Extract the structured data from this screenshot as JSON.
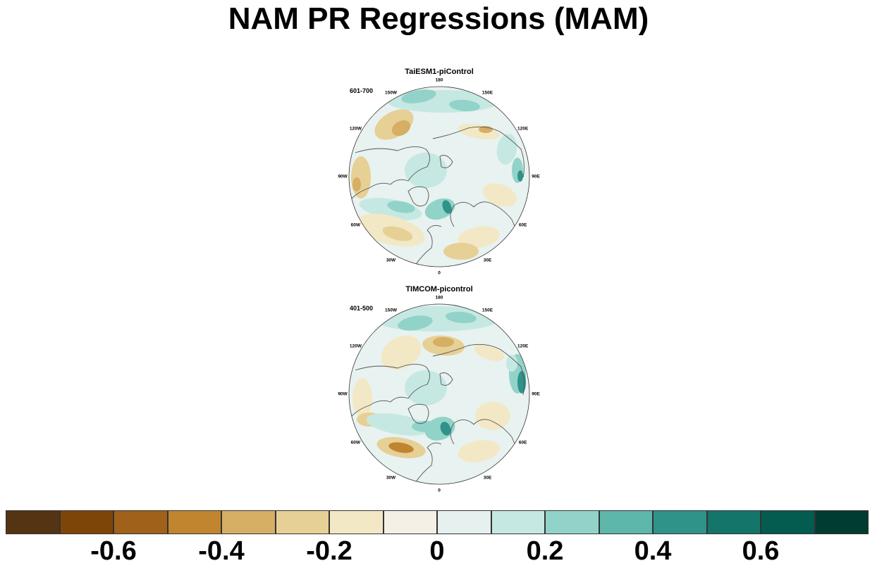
{
  "title": "NAM PR Regressions (MAM)",
  "panels": [
    {
      "title": "TaiESM1-piControl",
      "period": "601-700",
      "lon_labels": [
        "180",
        "150E",
        "120E",
        "90E",
        "60E",
        "30E",
        "0",
        "30W",
        "60W",
        "90W",
        "120W",
        "150W"
      ]
    },
    {
      "title": "TIMCOM-picontrol",
      "period": "401-500",
      "lon_labels": [
        "180",
        "150E",
        "120E",
        "90E",
        "60E",
        "30E",
        "0",
        "30W",
        "60W",
        "90W",
        "120W",
        "150W"
      ]
    }
  ],
  "colorbar": {
    "colors": [
      "#553413",
      "#7d4607",
      "#a0611b",
      "#c18530",
      "#d6ae64",
      "#e6d095",
      "#f3e8c5",
      "#f4f0e6",
      "#e5f0ef",
      "#c6e8e2",
      "#92d3c9",
      "#5eb7ab",
      "#2f9389",
      "#14756b",
      "#045b50",
      "#003c2f"
    ],
    "tick_labels": [
      "-0.6",
      "-0.4",
      "-0.2",
      "0",
      "0.2",
      "0.4",
      "0.6"
    ]
  },
  "palette": {
    "brown_strong": "#c18530",
    "brown": "#d6ae64",
    "tan": "#e6d095",
    "cream": "#f3e8c5",
    "teal_light": "#c6e8e2",
    "teal": "#92d3c9",
    "teal_mid": "#5eb7ab",
    "teal_dark": "#2f9389",
    "coast": "#555555"
  }
}
